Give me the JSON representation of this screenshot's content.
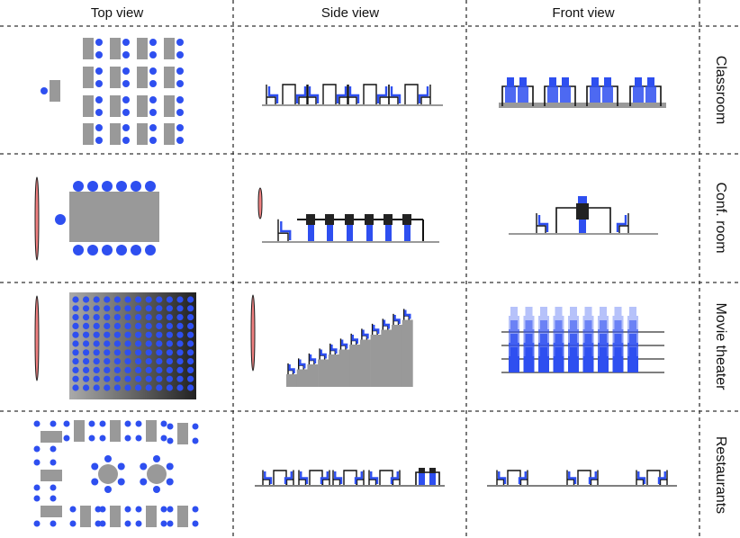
{
  "columns": {
    "top_view": "Top view",
    "side_view": "Side view",
    "front_view": "Front view"
  },
  "rows": {
    "classroom": "Classroom",
    "conf_room": "Conf. room",
    "movie_theater": "Movie theater",
    "restaurants": "Restaurants"
  },
  "colors": {
    "seat": "#2e4ff0",
    "seat_light": "#9aa8f2",
    "table": "#999999",
    "screen": "#f08080",
    "divider": "#333333"
  }
}
